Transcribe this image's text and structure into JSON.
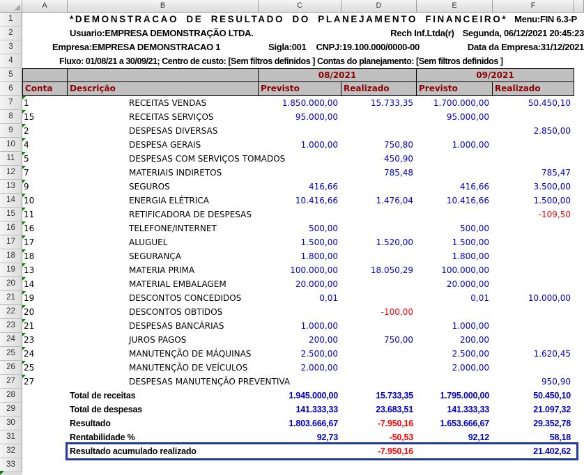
{
  "colors": {
    "header_bg": "#c0c0c0",
    "header_text": "#8b0000",
    "value_blue": "#0000cc",
    "value_negative": "#ff0000",
    "highlight_border": "#1f3aa5",
    "error_indicator": "#008000"
  },
  "sheet": {
    "column_letters": [
      "A",
      "B",
      "C",
      "D",
      "E",
      "F"
    ],
    "row_numbers": [
      "1",
      "2",
      "3",
      "4",
      "5",
      "6",
      "7",
      "8",
      "9",
      "10",
      "11",
      "12",
      "13",
      "14",
      "15",
      "16",
      "17",
      "18",
      "19",
      "20",
      "21",
      "22",
      "23",
      "24",
      "25",
      "26",
      "27",
      "28",
      "29",
      "30",
      "31",
      "32",
      "33"
    ]
  },
  "report": {
    "title": "*DEMONSTRACAO DE RESULTADO DO PLANEJAMENTO FINANCEIRO*",
    "menu": "Menu:FIN 6.3-P",
    "usuario": "Usuario:EMPRESA DEMONSTRAÇÃO LTDA.",
    "vendor": "Rech Inf.Ltda(r)",
    "datetime": "Segunda, 06/12/2021 20:45:23",
    "empresa": "Empresa:EMPRESA DEMONSTRACAO 1",
    "sigla": "Sigla:001",
    "cnpj": "CNPJ:19.100.000/0000-00",
    "data_empresa": "Data da Empresa:31/12/2021",
    "fluxo": "Fluxo: 01/08/21 a 30/09/21; Centro de custo: [Sem filtros definidos ] Contas do planejamento: [Sem filtros definidos ]"
  },
  "table": {
    "period_headers": [
      "08/2021",
      "09/2021"
    ],
    "columns": [
      "Conta",
      "Descrição",
      "Previsto",
      "Realizado",
      "Previsto",
      "Realizado"
    ],
    "rows": [
      {
        "conta": "1",
        "descricao": "RECEITAS VENDAS",
        "c": "1.850.000,00",
        "d": "15.733,35",
        "e": "1.700.000,00",
        "f": "50.450,10"
      },
      {
        "conta": "15",
        "descricao": "RECEITAS SERVIÇOS",
        "c": "95.000,00",
        "d": "",
        "e": "95.000,00",
        "f": ""
      },
      {
        "conta": "2",
        "descricao": "DESPESAS DIVERSAS",
        "c": "",
        "d": "",
        "e": "",
        "f": "2.850,00"
      },
      {
        "conta": "4",
        "descricao": "DESPESA GERAIS",
        "c": "1.000,00",
        "d": "750,80",
        "e": "1.000,00",
        "f": ""
      },
      {
        "conta": "5",
        "descricao": "DESPESAS COM SERVIÇOS TOMADOS",
        "c": "",
        "d": "450,90",
        "e": "",
        "f": ""
      },
      {
        "conta": "7",
        "descricao": "MATERIAIS INDIRETOS",
        "c": "",
        "d": "785,48",
        "e": "",
        "f": "785,47"
      },
      {
        "conta": "9",
        "descricao": "SEGUROS",
        "c": "416,66",
        "d": "",
        "e": "416,66",
        "f": "3.500,00"
      },
      {
        "conta": "10",
        "descricao": "ENERGIA ELÉTRICA",
        "c": "10.416,66",
        "d": "1.476,04",
        "e": "10.416,66",
        "f": "1.500,00"
      },
      {
        "conta": "11",
        "descricao": "RETIFICADORA DE DESPESAS",
        "c": "",
        "d": "",
        "e": "",
        "f": "-109,50"
      },
      {
        "conta": "16",
        "descricao": "TELEFONE/INTERNET",
        "c": "500,00",
        "d": "",
        "e": "500,00",
        "f": ""
      },
      {
        "conta": "17",
        "descricao": "ALUGUEL",
        "c": "1.500,00",
        "d": "1.520,00",
        "e": "1.500,00",
        "f": ""
      },
      {
        "conta": "18",
        "descricao": "SEGURANÇA",
        "c": "1.800,00",
        "d": "",
        "e": "1.800,00",
        "f": ""
      },
      {
        "conta": "13",
        "descricao": "MATERIA PRIMA",
        "c": "100.000,00",
        "d": "18.050,29",
        "e": "100.000,00",
        "f": ""
      },
      {
        "conta": "14",
        "descricao": "MATERIAL EMBALAGEM",
        "c": "20.000,00",
        "d": "",
        "e": "20.000,00",
        "f": ""
      },
      {
        "conta": "19",
        "descricao": "DESCONTOS CONCEDIDOS",
        "c": "0,01",
        "d": "",
        "e": "0,01",
        "f": "10.000,00"
      },
      {
        "conta": "20",
        "descricao": "DESCONTOS OBTIDOS",
        "c": "",
        "d": "-100,00",
        "e": "",
        "f": ""
      },
      {
        "conta": "21",
        "descricao": "DESPESAS BANCÁRIAS",
        "c": "1.000,00",
        "d": "",
        "e": "1.000,00",
        "f": ""
      },
      {
        "conta": "23",
        "descricao": "JUROS PAGOS",
        "c": "200,00",
        "d": "750,00",
        "e": "200,00",
        "f": ""
      },
      {
        "conta": "24",
        "descricao": "MANUTENÇÃO DE MÁQUINAS",
        "c": "2.500,00",
        "d": "",
        "e": "2.500,00",
        "f": "1.620,45"
      },
      {
        "conta": "25",
        "descricao": "MANUTENÇÃO DE VEÍCULOS",
        "c": "2.000,00",
        "d": "",
        "e": "2.000,00",
        "f": ""
      },
      {
        "conta": "27",
        "descricao": "DESPESAS MANUTENÇÃO PREVENTIVA",
        "c": "",
        "d": "",
        "e": "",
        "f": "950,90"
      }
    ],
    "totals": [
      {
        "label": "Total de receitas",
        "c": "1.945.000,00",
        "d": "15.733,35",
        "e": "1.795.000,00",
        "f": "50.450,10"
      },
      {
        "label": "Total de despesas",
        "c": "141.333,33",
        "d": "23.683,51",
        "e": "141.333,33",
        "f": "21.097,32"
      },
      {
        "label": "Resultado",
        "c": "1.803.666,67",
        "d": "-7.950,16",
        "e": "1.653.666,67",
        "f": "29.352,78"
      },
      {
        "label": "Rentabilidade %",
        "c": "92,73",
        "d": "-50,53",
        "e": "92,12",
        "f": "58,18"
      }
    ],
    "accumulated": {
      "label": "Resultado acumulado realizado",
      "c": "",
      "d": "-7.950,16",
      "e": "",
      "f": "21.402,62"
    }
  }
}
